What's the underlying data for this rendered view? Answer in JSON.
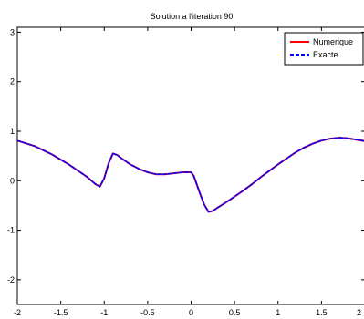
{
  "chart_data": {
    "type": "line",
    "title": "Solution a l'iteration 90",
    "xlabel": "",
    "ylabel": "",
    "xlim": [
      -2,
      2
    ],
    "ylim": [
      -2.5,
      3.1
    ],
    "x_ticks": [
      -2,
      -1.5,
      -1,
      -0.5,
      0,
      0.5,
      1,
      1.5,
      2
    ],
    "x_tick_labels": [
      "-2",
      "-1.5",
      "-1",
      "-0.5",
      "0",
      "0.5",
      "1",
      "1.5",
      "2"
    ],
    "y_ticks": [
      -2,
      -1,
      0,
      1,
      2,
      3
    ],
    "y_tick_labels": [
      "-2",
      "-1",
      "0",
      "1",
      "2",
      "3"
    ],
    "grid": false,
    "legend_position": "top-right",
    "series": [
      {
        "name": "Numerique",
        "color": "#ff0000",
        "style": "solid",
        "x": [
          -2,
          -1.8,
          -1.6,
          -1.4,
          -1.2,
          -1.1,
          -1.05,
          -1.0,
          -0.95,
          -0.9,
          -0.85,
          -0.8,
          -0.7,
          -0.6,
          -0.5,
          -0.4,
          -0.3,
          -0.2,
          -0.1,
          0,
          0.03,
          0.06,
          0.1,
          0.15,
          0.2,
          0.25,
          0.3,
          0.4,
          0.5,
          0.6,
          0.7,
          0.8,
          0.9,
          1.0,
          1.1,
          1.2,
          1.3,
          1.4,
          1.5,
          1.6,
          1.7,
          1.8,
          1.9,
          2.0
        ],
        "y": [
          0.81,
          0.7,
          0.53,
          0.32,
          0.08,
          -0.07,
          -0.12,
          0.05,
          0.35,
          0.55,
          0.52,
          0.45,
          0.33,
          0.24,
          0.17,
          0.13,
          0.13,
          0.15,
          0.17,
          0.17,
          0.1,
          -0.05,
          -0.25,
          -0.48,
          -0.63,
          -0.61,
          -0.55,
          -0.44,
          -0.32,
          -0.2,
          -0.07,
          0.07,
          0.2,
          0.33,
          0.45,
          0.57,
          0.67,
          0.75,
          0.81,
          0.85,
          0.87,
          0.86,
          0.83,
          0.8
        ]
      },
      {
        "name": "Exacte",
        "color": "#0000ff",
        "style": "dashed",
        "x": [
          -2,
          -1.8,
          -1.6,
          -1.4,
          -1.2,
          -1.1,
          -1.05,
          -1.0,
          -0.95,
          -0.9,
          -0.85,
          -0.8,
          -0.7,
          -0.6,
          -0.5,
          -0.4,
          -0.3,
          -0.2,
          -0.1,
          0,
          0.03,
          0.06,
          0.1,
          0.15,
          0.2,
          0.25,
          0.3,
          0.4,
          0.5,
          0.6,
          0.7,
          0.8,
          0.9,
          1.0,
          1.1,
          1.2,
          1.3,
          1.4,
          1.5,
          1.6,
          1.7,
          1.8,
          1.9,
          2.0
        ],
        "y": [
          0.81,
          0.7,
          0.53,
          0.32,
          0.08,
          -0.07,
          -0.12,
          0.05,
          0.35,
          0.55,
          0.52,
          0.45,
          0.33,
          0.24,
          0.17,
          0.13,
          0.13,
          0.15,
          0.17,
          0.17,
          0.1,
          -0.05,
          -0.25,
          -0.48,
          -0.63,
          -0.61,
          -0.55,
          -0.44,
          -0.32,
          -0.2,
          -0.07,
          0.07,
          0.2,
          0.33,
          0.45,
          0.57,
          0.67,
          0.75,
          0.81,
          0.85,
          0.87,
          0.86,
          0.83,
          0.8
        ]
      }
    ]
  }
}
